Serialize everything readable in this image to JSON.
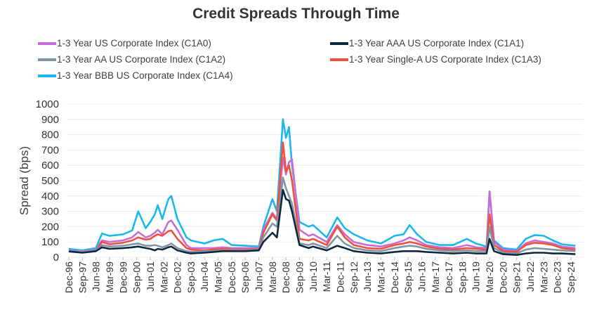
{
  "chart_data": {
    "type": "line",
    "title": "Credit Spreads Through Time",
    "xlabel": "",
    "ylabel": "Spread (bps)",
    "ylim": [
      0,
      1000
    ],
    "yticks": [
      0,
      100,
      200,
      300,
      400,
      500,
      600,
      700,
      800,
      900,
      1000
    ],
    "grid": true,
    "legend_placement": "top",
    "xtick_labels": [
      "Dec-96",
      "Sep-97",
      "Jun-98",
      "Mar-99",
      "Dec-99",
      "Sep-00",
      "Jun-01",
      "Mar-02",
      "Dec-02",
      "Sep-03",
      "Jun-04",
      "Mar-05",
      "Dec-05",
      "Sep-06",
      "Jun-07",
      "Mar-08",
      "Dec-08",
      "Sep-09",
      "Jun-10",
      "Mar-11",
      "Dec-11",
      "Sep-12",
      "Jun-13",
      "Mar-14",
      "Dec-14",
      "Sep-15",
      "Jun-16",
      "Mar-17",
      "Dec-17",
      "Sep-18",
      "Jun-19",
      "Mar-20",
      "Dec-20",
      "Sep-21",
      "Jun-22",
      "Mar-23",
      "Dec-23",
      "Sep-24"
    ],
    "x": [
      "1996-12",
      "1997-09",
      "1998-06",
      "1998-10",
      "1999-03",
      "1999-12",
      "2000-06",
      "2000-10",
      "2001-03",
      "2001-06",
      "2001-09",
      "2001-11",
      "2002-02",
      "2002-06",
      "2002-08",
      "2002-12",
      "2003-06",
      "2003-09",
      "2004-06",
      "2004-12",
      "2005-06",
      "2005-12",
      "2006-09",
      "2007-06",
      "2007-09",
      "2008-03",
      "2008-06",
      "2008-10",
      "2008-12",
      "2009-02",
      "2009-04",
      "2009-09",
      "2010-03",
      "2010-06",
      "2011-03",
      "2011-10",
      "2012-03",
      "2012-09",
      "2013-06",
      "2014-03",
      "2014-12",
      "2015-06",
      "2015-10",
      "2016-03",
      "2016-09",
      "2017-06",
      "2018-03",
      "2018-12",
      "2019-06",
      "2020-01",
      "2020-03",
      "2020-06",
      "2020-12",
      "2021-09",
      "2022-03",
      "2022-09",
      "2023-03",
      "2023-09",
      "2024-03",
      "2024-12"
    ],
    "series": [
      {
        "name": "1-3 Year BBB US Corporate Index (C1A4)",
        "color": "#1ab8ef",
        "values": [
          55,
          45,
          60,
          155,
          140,
          150,
          175,
          300,
          190,
          230,
          280,
          340,
          250,
          380,
          400,
          250,
          130,
          110,
          90,
          110,
          120,
          80,
          75,
          70,
          200,
          380,
          300,
          900,
          780,
          850,
          600,
          230,
          200,
          210,
          130,
          260,
          190,
          150,
          110,
          90,
          140,
          150,
          210,
          150,
          100,
          80,
          80,
          120,
          90,
          70,
          430,
          110,
          60,
          50,
          120,
          145,
          140,
          110,
          85,
          75
        ]
      },
      {
        "name": "1-3 Year US Corporate Index (C1A0)",
        "color": "#c86dd7",
        "values": [
          45,
          40,
          50,
          110,
          100,
          110,
          130,
          165,
          130,
          140,
          160,
          180,
          150,
          230,
          240,
          180,
          80,
          60,
          60,
          60,
          65,
          60,
          60,
          60,
          180,
          290,
          250,
          650,
          540,
          620,
          640,
          180,
          140,
          150,
          100,
          210,
          150,
          100,
          80,
          70,
          90,
          110,
          130,
          110,
          80,
          65,
          60,
          80,
          65,
          60,
          430,
          100,
          50,
          40,
          90,
          110,
          100,
          90,
          70,
          60
        ]
      },
      {
        "name": "1-3 Year Single-A US Corporate Index (C1A3)",
        "color": "#f0503c",
        "values": [
          40,
          35,
          45,
          100,
          85,
          95,
          110,
          130,
          115,
          120,
          140,
          150,
          140,
          170,
          175,
          120,
          60,
          50,
          45,
          50,
          55,
          50,
          50,
          55,
          160,
          280,
          240,
          750,
          560,
          600,
          500,
          120,
          110,
          120,
          80,
          200,
          130,
          80,
          60,
          55,
          80,
          90,
          100,
          90,
          70,
          55,
          50,
          60,
          55,
          50,
          280,
          80,
          40,
          35,
          80,
          95,
          90,
          80,
          60,
          50
        ]
      },
      {
        "name": "1-3 Year AA US Corporate Index (C1A2)",
        "color": "#7f96a8",
        "values": [
          42,
          35,
          45,
          80,
          70,
          75,
          85,
          90,
          75,
          75,
          80,
          75,
          65,
          80,
          90,
          60,
          40,
          35,
          40,
          40,
          45,
          45,
          45,
          50,
          130,
          220,
          200,
          520,
          450,
          400,
          350,
          90,
          80,
          90,
          60,
          140,
          90,
          60,
          45,
          40,
          60,
          70,
          75,
          70,
          55,
          45,
          40,
          45,
          40,
          40,
          200,
          60,
          30,
          25,
          50,
          60,
          55,
          50,
          45,
          40
        ]
      },
      {
        "name": "1-3 Year AAA US Corporate Index (C1A1)",
        "color": "#0e2841",
        "values": [
          38,
          30,
          40,
          65,
          55,
          60,
          65,
          70,
          60,
          55,
          45,
          55,
          50,
          65,
          70,
          45,
          30,
          25,
          30,
          35,
          40,
          40,
          40,
          45,
          100,
          160,
          130,
          440,
          380,
          370,
          300,
          80,
          60,
          70,
          45,
          75,
          60,
          40,
          30,
          25,
          35,
          40,
          40,
          40,
          35,
          30,
          25,
          30,
          25,
          25,
          120,
          40,
          20,
          15,
          25,
          30,
          30,
          25,
          25,
          20
        ]
      }
    ]
  },
  "legend": [
    {
      "label": "1-3 Year US Corporate Index (C1A0)",
      "color": "#c86dd7"
    },
    {
      "label": "1-3 Year AAA US Corporate Index (C1A1)",
      "color": "#0e2841"
    },
    {
      "label": "1-3 Year AA US Corporate Index (C1A2)",
      "color": "#7f96a8"
    },
    {
      "label": "1-3 Year Single-A US Corporate Index (C1A3)",
      "color": "#f0503c"
    },
    {
      "label": "1-3 Year BBB US Corporate Index (C1A4)",
      "color": "#1ab8ef"
    }
  ]
}
